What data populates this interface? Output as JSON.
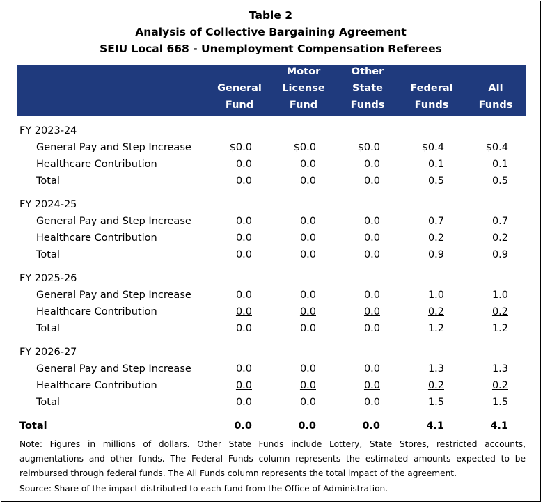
{
  "title": {
    "line1": "Table 2",
    "line2": "Analysis of Collective Bargaining Agreement",
    "line3": "SEIU Local 668 - Unemployment Compensation Referees"
  },
  "columns": [
    {
      "lines": [
        "",
        "General",
        "Fund"
      ]
    },
    {
      "lines": [
        "Motor",
        "License",
        "Fund"
      ]
    },
    {
      "lines": [
        "Other",
        "State",
        "Funds"
      ]
    },
    {
      "lines": [
        "",
        "Federal",
        "Funds"
      ]
    },
    {
      "lines": [
        "",
        "All",
        "Funds"
      ]
    }
  ],
  "sections": [
    {
      "label": "FY 2023-24",
      "rows": [
        {
          "label": "General Pay and Step Increase",
          "values": [
            "$0.0",
            "$0.0",
            "$0.0",
            "$0.4",
            "$0.4"
          ]
        },
        {
          "label": "Healthcare Contribution",
          "values": [
            "0.0",
            "0.0",
            "0.0",
            "0.1",
            "0.1"
          ]
        },
        {
          "label": "Total",
          "values": [
            "0.0",
            "0.0",
            "0.0",
            "0.5",
            "0.5"
          ]
        }
      ]
    },
    {
      "label": "FY 2024-25",
      "rows": [
        {
          "label": "General Pay and Step Increase",
          "values": [
            "0.0",
            "0.0",
            "0.0",
            "0.7",
            "0.7"
          ]
        },
        {
          "label": "Healthcare Contribution",
          "values": [
            "0.0",
            "0.0",
            "0.0",
            "0.2",
            "0.2"
          ]
        },
        {
          "label": "Total",
          "values": [
            "0.0",
            "0.0",
            "0.0",
            "0.9",
            "0.9"
          ]
        }
      ]
    },
    {
      "label": "FY 2025-26",
      "rows": [
        {
          "label": "General Pay and Step Increase",
          "values": [
            "0.0",
            "0.0",
            "0.0",
            "1.0",
            "1.0"
          ]
        },
        {
          "label": "Healthcare Contribution",
          "values": [
            "0.0",
            "0.0",
            "0.0",
            "0.2",
            "0.2"
          ]
        },
        {
          "label": "Total",
          "values": [
            "0.0",
            "0.0",
            "0.0",
            "1.2",
            "1.2"
          ]
        }
      ]
    },
    {
      "label": "FY 2026-27",
      "rows": [
        {
          "label": "General Pay and Step Increase",
          "values": [
            "0.0",
            "0.0",
            "0.0",
            "1.3",
            "1.3"
          ]
        },
        {
          "label": "Healthcare Contribution",
          "values": [
            "0.0",
            "0.0",
            "0.0",
            "0.2",
            "0.2"
          ]
        },
        {
          "label": "Total",
          "values": [
            "0.0",
            "0.0",
            "0.0",
            "1.5",
            "1.5"
          ]
        }
      ]
    }
  ],
  "grand_total": {
    "label": "Total",
    "values": [
      "0.0",
      "0.0",
      "0.0",
      "4.1",
      "4.1"
    ]
  },
  "note": "Note: Figures in millions of dollars. Other State Funds include Lottery, State Stores, restricted accounts, augmentations and other funds. The Federal Funds column represents the estimated amounts expected to be reimbursed through federal funds. The All Funds column represents the total impact of the agreement.",
  "source": "Source: Share of the impact distributed to each fund from the Office of Administration.",
  "colors": {
    "header_bg": "#1f3a7d",
    "header_text": "#ffffff"
  }
}
